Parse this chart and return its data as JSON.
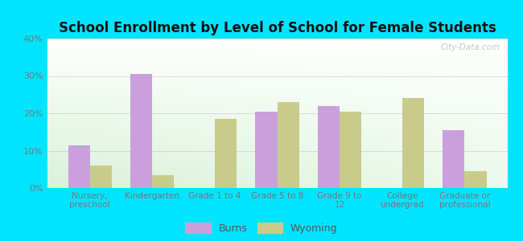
{
  "title": "School Enrollment by Level of School for Female Students",
  "categories": [
    "Nursery,\npreschool",
    "Kindergarten",
    "Grade 1 to 4",
    "Grade 5 to 8",
    "Grade 9 to\n12",
    "College\nundergrad",
    "Graduate or\nprofessional"
  ],
  "burns": [
    11.5,
    30.5,
    0,
    20.5,
    22,
    0,
    15.5
  ],
  "wyoming": [
    6,
    3.5,
    18.5,
    23,
    20.5,
    24,
    4.5
  ],
  "burns_color": "#c9a0dc",
  "wyoming_color": "#c8cc8a",
  "background_outer": "#00e5ff",
  "ylim": [
    0,
    40
  ],
  "yticks": [
    0,
    10,
    20,
    30,
    40
  ],
  "ytick_labels": [
    "0%",
    "10%",
    "20%",
    "30%",
    "40%"
  ],
  "bar_width": 0.35,
  "legend_labels": [
    "Burns",
    "Wyoming"
  ],
  "watermark": "City-Data.com"
}
